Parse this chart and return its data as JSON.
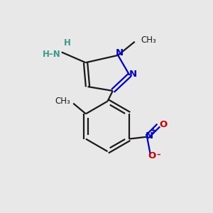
{
  "bg_color": "#e8e8e8",
  "line_color": "#1a1a1a",
  "N_color": "#0000cc",
  "O_color": "#cc0000",
  "NH_color": "#3a9a8a",
  "figsize": [
    3.0,
    3.0
  ],
  "dpi": 100,
  "xlim": [
    0,
    10
  ],
  "ylim": [
    0,
    10
  ]
}
